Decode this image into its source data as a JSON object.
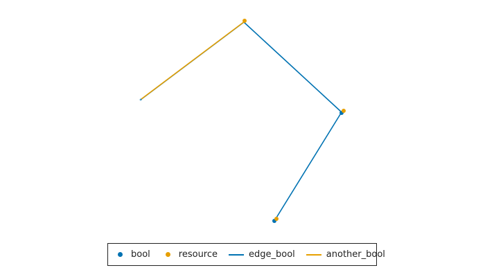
{
  "colors": {
    "bool": "#0072b2",
    "resource": "#e69f00"
  },
  "legend": [
    {
      "label": "bool",
      "kind": "dot",
      "color": "#0072b2"
    },
    {
      "label": "resource",
      "kind": "dot",
      "color": "#e69f00"
    },
    {
      "label": "edge_bool",
      "kind": "line",
      "color": "#0072b2"
    },
    {
      "label": "another_bool",
      "kind": "line",
      "color": "#e69f00"
    }
  ]
}
